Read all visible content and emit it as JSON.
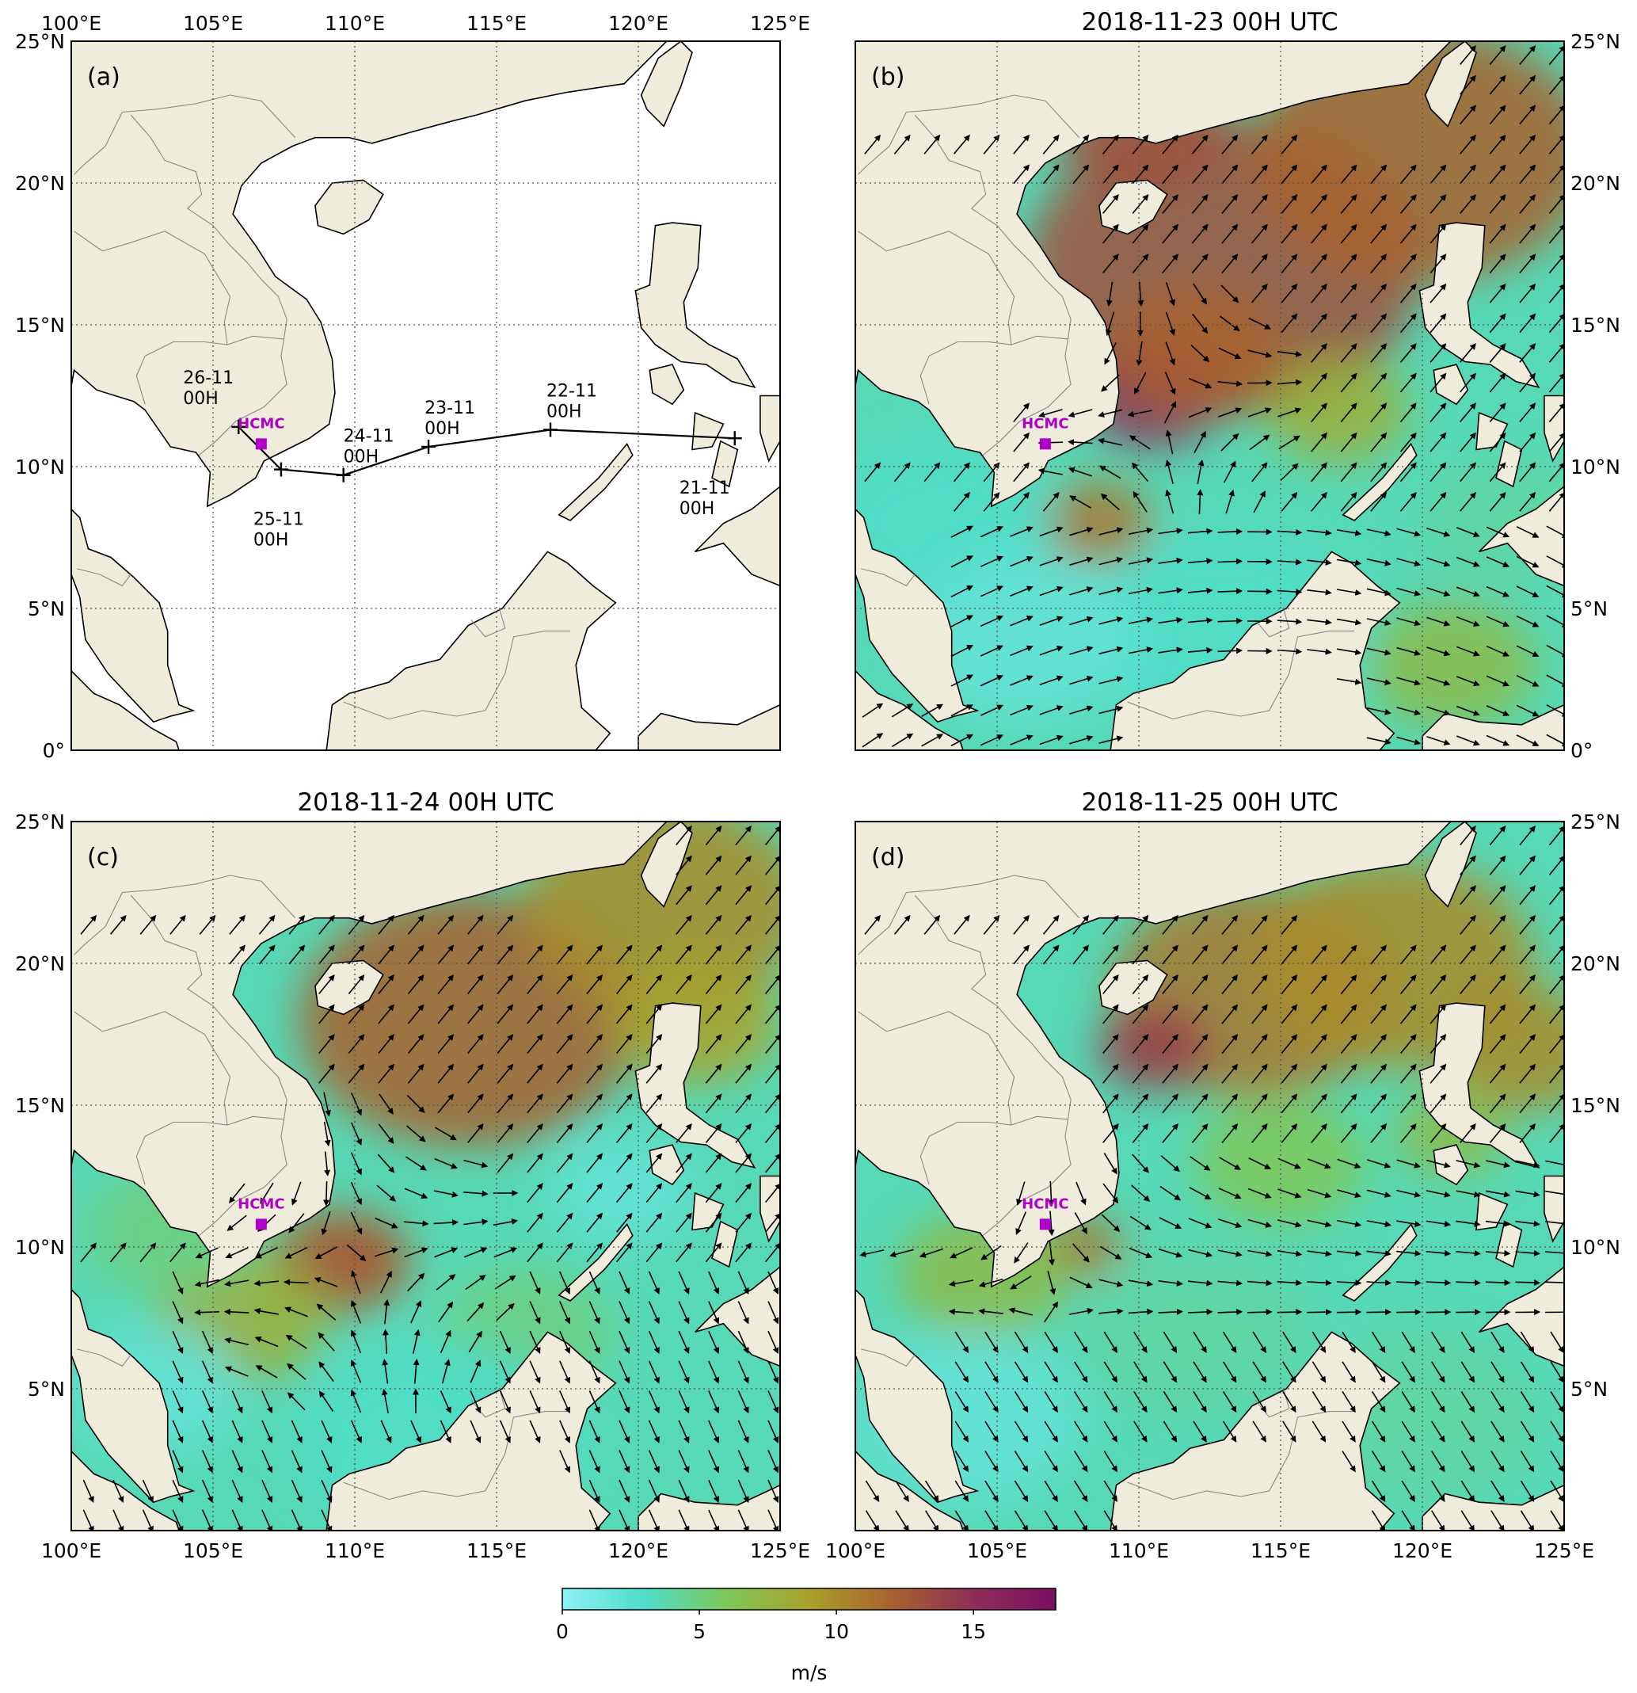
{
  "figure": {
    "colorbar": {
      "min": 0,
      "max": 18,
      "ticks": [
        0,
        5,
        10,
        15
      ],
      "tick_labels": [
        "0",
        "5",
        "10",
        "15"
      ],
      "unit": "m/s",
      "colors": [
        "#8df2f8",
        "#4fdcc8",
        "#7ec85a",
        "#a9a12a",
        "#a8622f",
        "#8e2e57",
        "#7a0f63"
      ]
    },
    "extent": {
      "lon": [
        100,
        125
      ],
      "lat": [
        0,
        25
      ]
    },
    "x_ticks": [
      100,
      105,
      110,
      115,
      120,
      125
    ],
    "x_tick_labels": [
      "100°E",
      "105°E",
      "110°E",
      "115°E",
      "120°E",
      "125°E"
    ],
    "y_ticks": [
      0,
      5,
      10,
      15,
      20,
      25
    ],
    "y_tick_labels": [
      "0°",
      "5°N",
      "10°N",
      "15°N",
      "20°N",
      "25°N"
    ],
    "colors": {
      "land": "#efecdc",
      "hcmc": "#b000c8",
      "track": "#000000"
    },
    "hcmc": {
      "label": "HCMC",
      "lon": 106.7,
      "lat": 10.8
    }
  },
  "panels": [
    {
      "id": "a",
      "label": "(a)",
      "title": "",
      "type": "track"
    },
    {
      "id": "b",
      "label": "(b)",
      "title": "2018-11-23 00H UTC",
      "type": "wind"
    },
    {
      "id": "c",
      "label": "(c)",
      "title": "2018-11-24 00H UTC",
      "type": "wind"
    },
    {
      "id": "d",
      "label": "(d)",
      "title": "2018-11-25 00H UTC",
      "type": "wind"
    }
  ],
  "chart_data": {
    "type": "scatter",
    "title": "",
    "xlabel": "",
    "ylabel": "",
    "xlim": [
      100,
      125
    ],
    "ylim": [
      0,
      25
    ],
    "series": [
      {
        "values": [
          {
            "lon": 123.4,
            "lat": 11.0,
            "label_line1": "21-11",
            "label_line2": "00H"
          },
          {
            "lon": 116.9,
            "lat": 11.3,
            "label_line1": "22-11",
            "label_line2": "00H"
          },
          {
            "lon": 112.6,
            "lat": 10.7,
            "label_line1": "23-11",
            "label_line2": "00H"
          },
          {
            "lon": 109.6,
            "lat": 9.7,
            "label_line1": "24-11",
            "label_line2": "00H"
          },
          {
            "lon": 107.4,
            "lat": 9.9,
            "label_line1": "25-11",
            "label_line2": "00H"
          },
          {
            "lon": 105.9,
            "lat": 11.4,
            "label_line1": "26-11",
            "label_line2": "00H"
          }
        ]
      }
    ]
  }
}
